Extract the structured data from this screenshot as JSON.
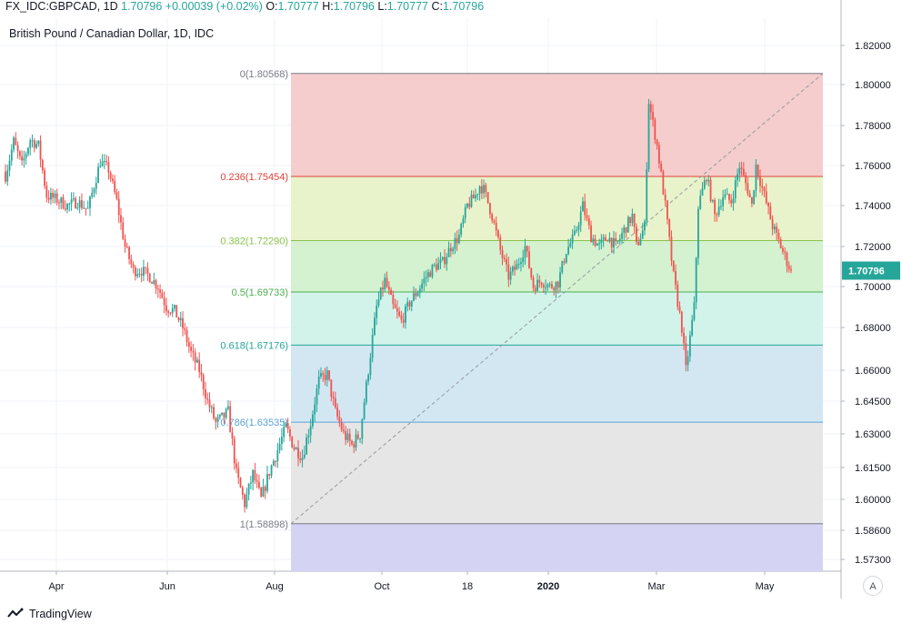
{
  "header": {
    "symbol": "FX_IDC:GBPCAD, 1D",
    "last": "1.70796",
    "change": "+0.00039 (+0.02%)",
    "o_label": "O:",
    "o_value": "1.70777",
    "h_label": "H:",
    "h_value": "1.70796",
    "l_label": "L:",
    "l_value": "1.70777",
    "c_label": "C:",
    "c_value": "1.70796"
  },
  "subtitle": "British Pound / Canadian Dollar, 1D, IDC",
  "branding": "TradingView",
  "auto_button": "A",
  "colors": {
    "up": "#26a69a",
    "down": "#ef5350",
    "price_label_bg": "#26a69a"
  },
  "chart_data": {
    "type": "candlestick",
    "title": "British Pound / Canadian Dollar, 1D, IDC",
    "y_axis": {
      "side": "right",
      "ticks": [
        "1.82000",
        "1.80000",
        "1.78000",
        "1.76000",
        "1.74000",
        "1.72000",
        "1.70000",
        "1.68000",
        "1.66000",
        "1.64500",
        "1.63000",
        "1.61500",
        "1.60000",
        "1.58600",
        "1.57300"
      ]
    },
    "x_axis": {
      "ticks": [
        "Apr",
        "Jun",
        "Aug",
        "Oct",
        "18",
        "2020",
        "Mar",
        "May"
      ]
    },
    "current_price_label": "1.70796",
    "grid": true,
    "fibonacci_retracement": {
      "trend_from": 1.58898,
      "trend_to": 1.80568,
      "levels": [
        {
          "ratio": 0,
          "price": 1.80568,
          "label": "0(1.80568)",
          "line_color": "#787b86",
          "fill": "#f4cdcc"
        },
        {
          "ratio": 0.236,
          "price": 1.75454,
          "label": "0.236(1.75454)",
          "line_color": "#e0423a",
          "fill": "#e9f3cb"
        },
        {
          "ratio": 0.382,
          "price": 1.7229,
          "label": "0.382(1.72290)",
          "line_color": "#8bc34a",
          "fill": "#d4f1d0"
        },
        {
          "ratio": 0.5,
          "price": 1.69733,
          "label": "0.5(1.69733)",
          "line_color": "#4caf50",
          "fill": "#d2f3ea"
        },
        {
          "ratio": 0.618,
          "price": 1.67176,
          "label": "0.618(1.67176)",
          "line_color": "#26a69a",
          "fill": "#d3e7f3"
        },
        {
          "ratio": 0.786,
          "price": 1.63535,
          "label": "0.786(1.63535)",
          "line_color": "#5aa2d8",
          "fill": "#e6e6e6"
        },
        {
          "ratio": 1,
          "price": 1.58898,
          "label": "1(1.58898)",
          "line_color": "#787b86",
          "fill": "#d5d3f3"
        }
      ]
    },
    "candles_anchors": [
      [
        0,
        1.755
      ],
      [
        4,
        1.772
      ],
      [
        8,
        1.76
      ],
      [
        12,
        1.773
      ],
      [
        16,
        1.77
      ],
      [
        20,
        1.745
      ],
      [
        25,
        1.743
      ],
      [
        30,
        1.74
      ],
      [
        35,
        1.742
      ],
      [
        40,
        1.738
      ],
      [
        46,
        1.762
      ],
      [
        50,
        1.758
      ],
      [
        54,
        1.742
      ],
      [
        58,
        1.72
      ],
      [
        62,
        1.708
      ],
      [
        66,
        1.708
      ],
      [
        70,
        1.705
      ],
      [
        74,
        1.7
      ],
      [
        78,
        1.69
      ],
      [
        82,
        1.688
      ],
      [
        86,
        1.68
      ],
      [
        90,
        1.668
      ],
      [
        94,
        1.66
      ],
      [
        98,
        1.645
      ],
      [
        102,
        1.635
      ],
      [
        106,
        1.638
      ],
      [
        108,
        1.64
      ],
      [
        112,
        1.612
      ],
      [
        116,
        1.598
      ],
      [
        120,
        1.612
      ],
      [
        124,
        1.6
      ],
      [
        128,
        1.613
      ],
      [
        132,
        1.623
      ],
      [
        136,
        1.633
      ],
      [
        140,
        1.624
      ],
      [
        144,
        1.62
      ],
      [
        148,
        1.635
      ],
      [
        152,
        1.655
      ],
      [
        156,
        1.658
      ],
      [
        160,
        1.64
      ],
      [
        164,
        1.63
      ],
      [
        168,
        1.625
      ],
      [
        172,
        1.63
      ],
      [
        176,
        1.66
      ],
      [
        180,
        1.69
      ],
      [
        184,
        1.703
      ],
      [
        188,
        1.69
      ],
      [
        192,
        1.683
      ],
      [
        196,
        1.692
      ],
      [
        200,
        1.698
      ],
      [
        204,
        1.705
      ],
      [
        208,
        1.71
      ],
      [
        212,
        1.712
      ],
      [
        216,
        1.72
      ],
      [
        220,
        1.725
      ],
      [
        224,
        1.74
      ],
      [
        228,
        1.745
      ],
      [
        230,
        1.75
      ],
      [
        232,
        1.748
      ],
      [
        236,
        1.735
      ],
      [
        240,
        1.718
      ],
      [
        244,
        1.705
      ],
      [
        248,
        1.71
      ],
      [
        252,
        1.72
      ],
      [
        256,
        1.7
      ],
      [
        260,
        1.703
      ],
      [
        264,
        1.7
      ],
      [
        268,
        1.702
      ],
      [
        272,
        1.718
      ],
      [
        276,
        1.725
      ],
      [
        280,
        1.74
      ],
      [
        284,
        1.725
      ],
      [
        288,
        1.72
      ],
      [
        292,
        1.725
      ],
      [
        296,
        1.72
      ],
      [
        300,
        1.728
      ],
      [
        304,
        1.735
      ],
      [
        306,
        1.72
      ],
      [
        310,
        1.73
      ],
      [
        312,
        1.792
      ],
      [
        316,
        1.77
      ],
      [
        320,
        1.74
      ],
      [
        324,
        1.705
      ],
      [
        328,
        1.68
      ],
      [
        330,
        1.66
      ],
      [
        334,
        1.69
      ],
      [
        336,
        1.74
      ],
      [
        340,
        1.755
      ],
      [
        344,
        1.735
      ],
      [
        348,
        1.745
      ],
      [
        352,
        1.742
      ],
      [
        356,
        1.76
      ],
      [
        360,
        1.748
      ],
      [
        362,
        1.74
      ],
      [
        364,
        1.76
      ],
      [
        368,
        1.745
      ],
      [
        372,
        1.73
      ],
      [
        376,
        1.72
      ],
      [
        380,
        1.71
      ],
      [
        381,
        1.70796
      ]
    ]
  }
}
